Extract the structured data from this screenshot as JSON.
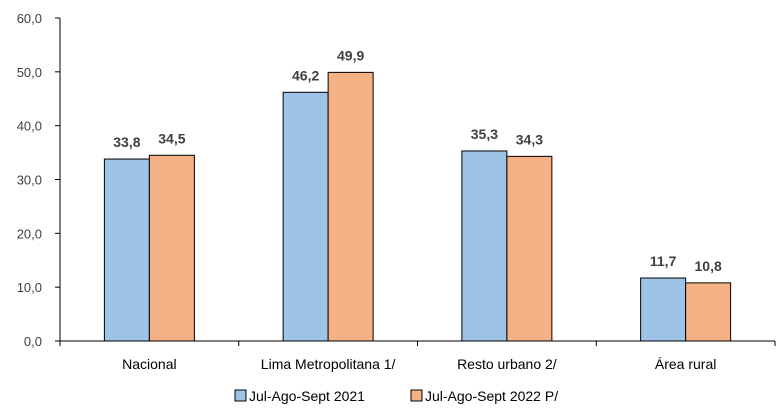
{
  "chart_data": {
    "type": "bar",
    "categories": [
      "Nacional",
      "Lima Metropolitana 1/",
      "Resto urbano 2/",
      "Área rural"
    ],
    "series": [
      {
        "name": "Jul-Ago-Sept 2021",
        "values": [
          33.8,
          46.2,
          35.3,
          11.7
        ],
        "labels": [
          "33,8",
          "46,2",
          "35,3",
          "11,7"
        ],
        "color": "#9dc3e6"
      },
      {
        "name": "Jul-Ago-Sept 2022 P/",
        "values": [
          34.5,
          49.9,
          34.3,
          10.8
        ],
        "labels": [
          "34,5",
          "49,9",
          "34,3",
          "10,8"
        ],
        "color": "#f4b183"
      }
    ],
    "yticks": [
      "0,0",
      "10,0",
      "20,0",
      "30,0",
      "40,0",
      "50,0",
      "60,0"
    ],
    "ylim": [
      0,
      60
    ],
    "grid": false,
    "legend_position": "bottom"
  }
}
